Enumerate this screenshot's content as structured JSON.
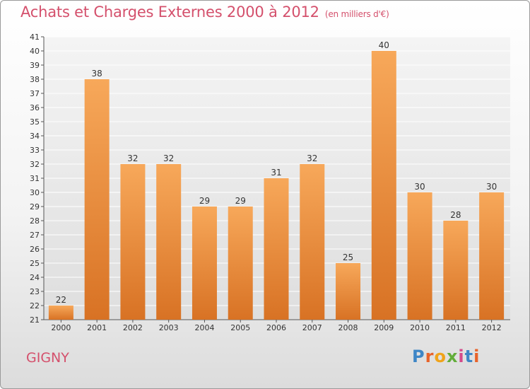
{
  "title": "Achats et Charges Externes 2000 à 2012",
  "unit": "(en milliers d'€)",
  "commune": "GIGNY",
  "logo": {
    "letters": [
      "P",
      "r",
      "o",
      "x",
      "i",
      "t",
      "i"
    ],
    "colors": [
      "#3e86c6",
      "#e8632a",
      "#f0a31a",
      "#62ad3a",
      "#d44a8a",
      "#3e86c6",
      "#e8632a"
    ]
  },
  "colors": {
    "bar_top": "#f7a85a",
    "bar_bottom": "#d87224",
    "title": "#d4506c"
  },
  "chart_data": {
    "type": "bar",
    "title": "Achats et Charges Externes 2000 à 2012",
    "xlabel": "",
    "ylabel": "",
    "categories": [
      "2000",
      "2001",
      "2002",
      "2003",
      "2004",
      "2005",
      "2006",
      "2007",
      "2008",
      "2009",
      "2010",
      "2011",
      "2012"
    ],
    "values": [
      22,
      38,
      32,
      32,
      29,
      29,
      31,
      32,
      25,
      40,
      30,
      28,
      30
    ],
    "ylim": [
      21,
      41
    ],
    "yticks": [
      21,
      22,
      23,
      24,
      25,
      26,
      27,
      28,
      29,
      30,
      31,
      32,
      33,
      34,
      35,
      36,
      37,
      38,
      39,
      40,
      41
    ],
    "grid": true,
    "legend": "none"
  }
}
